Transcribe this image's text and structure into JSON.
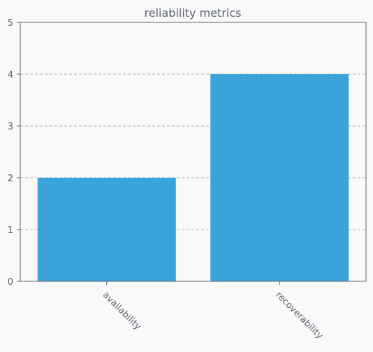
{
  "chart_data": {
    "type": "bar",
    "title": "reliability metrics",
    "categories": [
      "availability",
      "recoverability"
    ],
    "values": [
      2,
      4
    ],
    "xlabel": "",
    "ylabel": "",
    "ylim": [
      0,
      5
    ],
    "yticks": [
      0,
      1,
      2,
      3,
      4,
      5
    ],
    "grid": true,
    "bar_color": "#3aa3d9",
    "axis_color": "#5c6370",
    "grid_color": "#aaaaaa",
    "background": "#f9f9f9"
  }
}
